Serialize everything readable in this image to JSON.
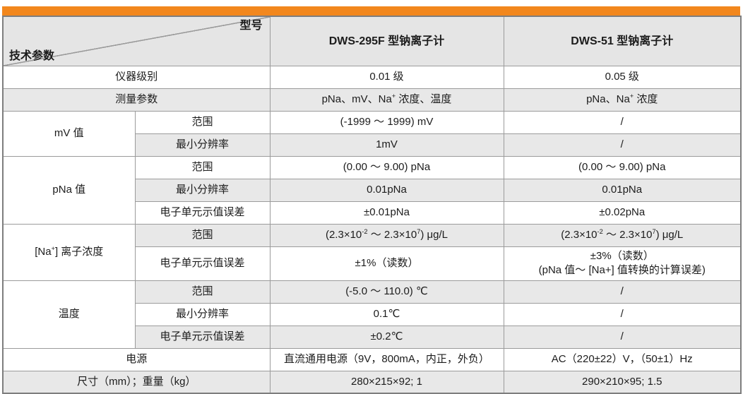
{
  "colors": {
    "accent_orange": "#F2871D",
    "row_gray": "#E8E8E8",
    "header_gray": "#E5E5E5",
    "border_inner": "#9B9B9B",
    "border_outer": "#7E7E7E",
    "text": "#1C1C1C"
  },
  "table": {
    "corner": {
      "top_right": "型号",
      "bottom_left": "技术参数"
    },
    "columns": {
      "dws295f": "DWS-295F 型钠离子计",
      "dws51": "DWS-51 型钠离子计"
    },
    "sublabels": {
      "range": "范围",
      "min_resolution": "最小分辨率",
      "unit_error": "电子单元示值误差"
    },
    "groups": {
      "mv": "mV 值",
      "pna": "pNa 值",
      "na": [
        "[Na",
        {
          "sup": "+"
        },
        "] 离子浓度"
      ],
      "temp": "温度"
    },
    "rows": {
      "grade": {
        "label": "仪器级别",
        "v1": "0.01 级",
        "v2": "0.05 级"
      },
      "params": {
        "label": "测量参数",
        "v1": [
          "pNa、mV、Na",
          {
            "sup": "+"
          },
          " 浓度、温度"
        ],
        "v2": [
          "pNa、Na",
          {
            "sup": "+"
          },
          " 浓度"
        ]
      },
      "mv_range": {
        "v1": "(-1999 ～ 1999) mV",
        "v2": "/"
      },
      "mv_res": {
        "v1": "1mV",
        "v2": "/"
      },
      "pna_range": {
        "v1": "(0.00 ～ 9.00) pNa",
        "v2": "(0.00 ～ 9.00) pNa"
      },
      "pna_res": {
        "v1": "0.01pNa",
        "v2": "0.01pNa"
      },
      "pna_err": {
        "v1": "±0.01pNa",
        "v2": "±0.02pNa"
      },
      "na_range": {
        "v1": [
          "(2.3×10",
          {
            "sup": "-2"
          },
          " ～ 2.3×10",
          {
            "sup": "7"
          },
          ") μg/L"
        ],
        "v2": [
          "(2.3×10",
          {
            "sup": "-2"
          },
          " ～ 2.3×10",
          {
            "sup": "7"
          },
          ") μg/L"
        ]
      },
      "na_err": {
        "v1": "±1%（读数）",
        "v2": "±3%（读数）\n(pNa 值～ [Na+] 值转换的计算误差)"
      },
      "t_range": {
        "v1": "(-5.0 ～ 110.0) ℃",
        "v2": "/"
      },
      "t_res": {
        "v1": "0.1℃",
        "v2": "/"
      },
      "t_err": {
        "v1": "±0.2℃",
        "v2": "/"
      },
      "power": {
        "label": "电源",
        "v1": "直流通用电源（9V，800mA，内正，外负）",
        "v2": "AC（220±22）V，（50±1）Hz"
      },
      "size": {
        "label": "尺寸（mm）；重量（kg）",
        "v1": "280×215×92; 1",
        "v2": "290×210×95; 1.5"
      }
    }
  }
}
